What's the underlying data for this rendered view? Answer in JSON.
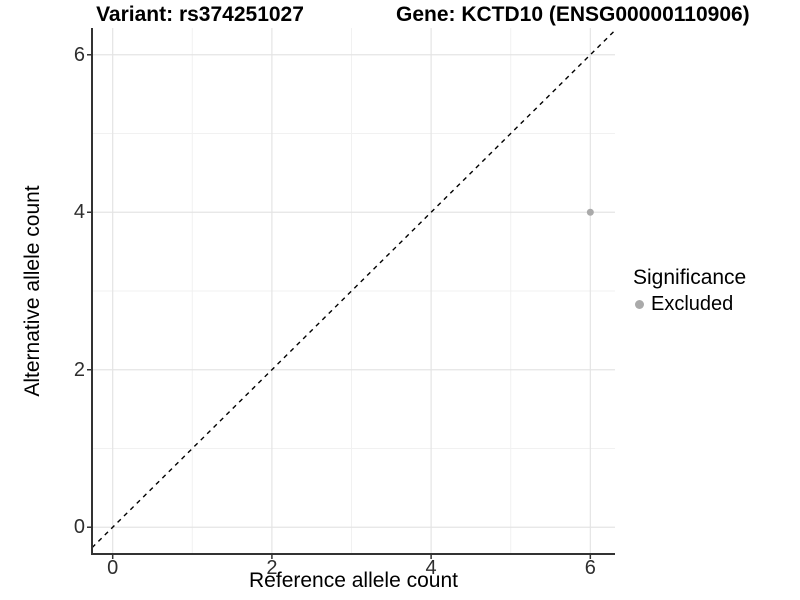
{
  "titles": {
    "variant": "Variant: rs374251027",
    "gene": "Gene: KCTD10 (ENSG00000110906)"
  },
  "legend": {
    "title": "Significance",
    "items": [
      {
        "label": "Excluded",
        "color": "#aaaaaa"
      }
    ]
  },
  "colors": {
    "axis_line": "#333333",
    "tick_mark": "#333333",
    "grid_major": "#e4e4e4",
    "grid_minor": "#f1f1f1",
    "reference_line": "#000000",
    "background": "#ffffff"
  },
  "chart_data": {
    "type": "scatter",
    "title": "Variant: rs374251027 | Gene: KCTD10 (ENSG00000110906)",
    "xlabel": "Reference allele count",
    "ylabel": "Alternative allele count",
    "xlim": [
      -0.26,
      6.31
    ],
    "ylim": [
      -0.34,
      6.34
    ],
    "x_ticks": [
      0,
      2,
      4,
      6
    ],
    "y_ticks": [
      0,
      2,
      4,
      6
    ],
    "x_minor_ticks": [
      1,
      3,
      5
    ],
    "y_minor_ticks": [
      1,
      3,
      5
    ],
    "grid": "major-and-minor",
    "legend_position": "right",
    "series": [
      {
        "name": "Excluded",
        "color": "#aaaaaa",
        "point_radius": 3.5,
        "points": [
          [
            6,
            4
          ]
        ]
      }
    ],
    "reference_line": {
      "slope": 1,
      "intercept": 0,
      "style": "dashed",
      "color": "#000000"
    }
  }
}
